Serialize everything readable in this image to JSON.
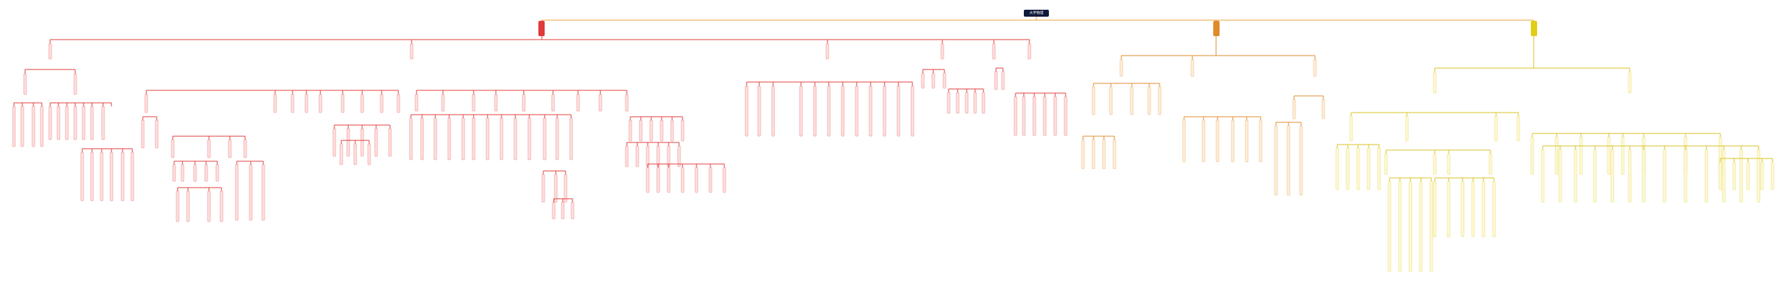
{
  "root": {
    "label": "大学物理"
  },
  "branches": [
    {
      "name": "red",
      "color": "#e03a3a",
      "fill": "#fde0e0"
    },
    {
      "name": "orange",
      "color": "#e08a2a",
      "fill": "#fdeeda"
    },
    {
      "name": "yellow",
      "color": "#d9c21c",
      "fill": "#fdf9d6"
    }
  ]
}
